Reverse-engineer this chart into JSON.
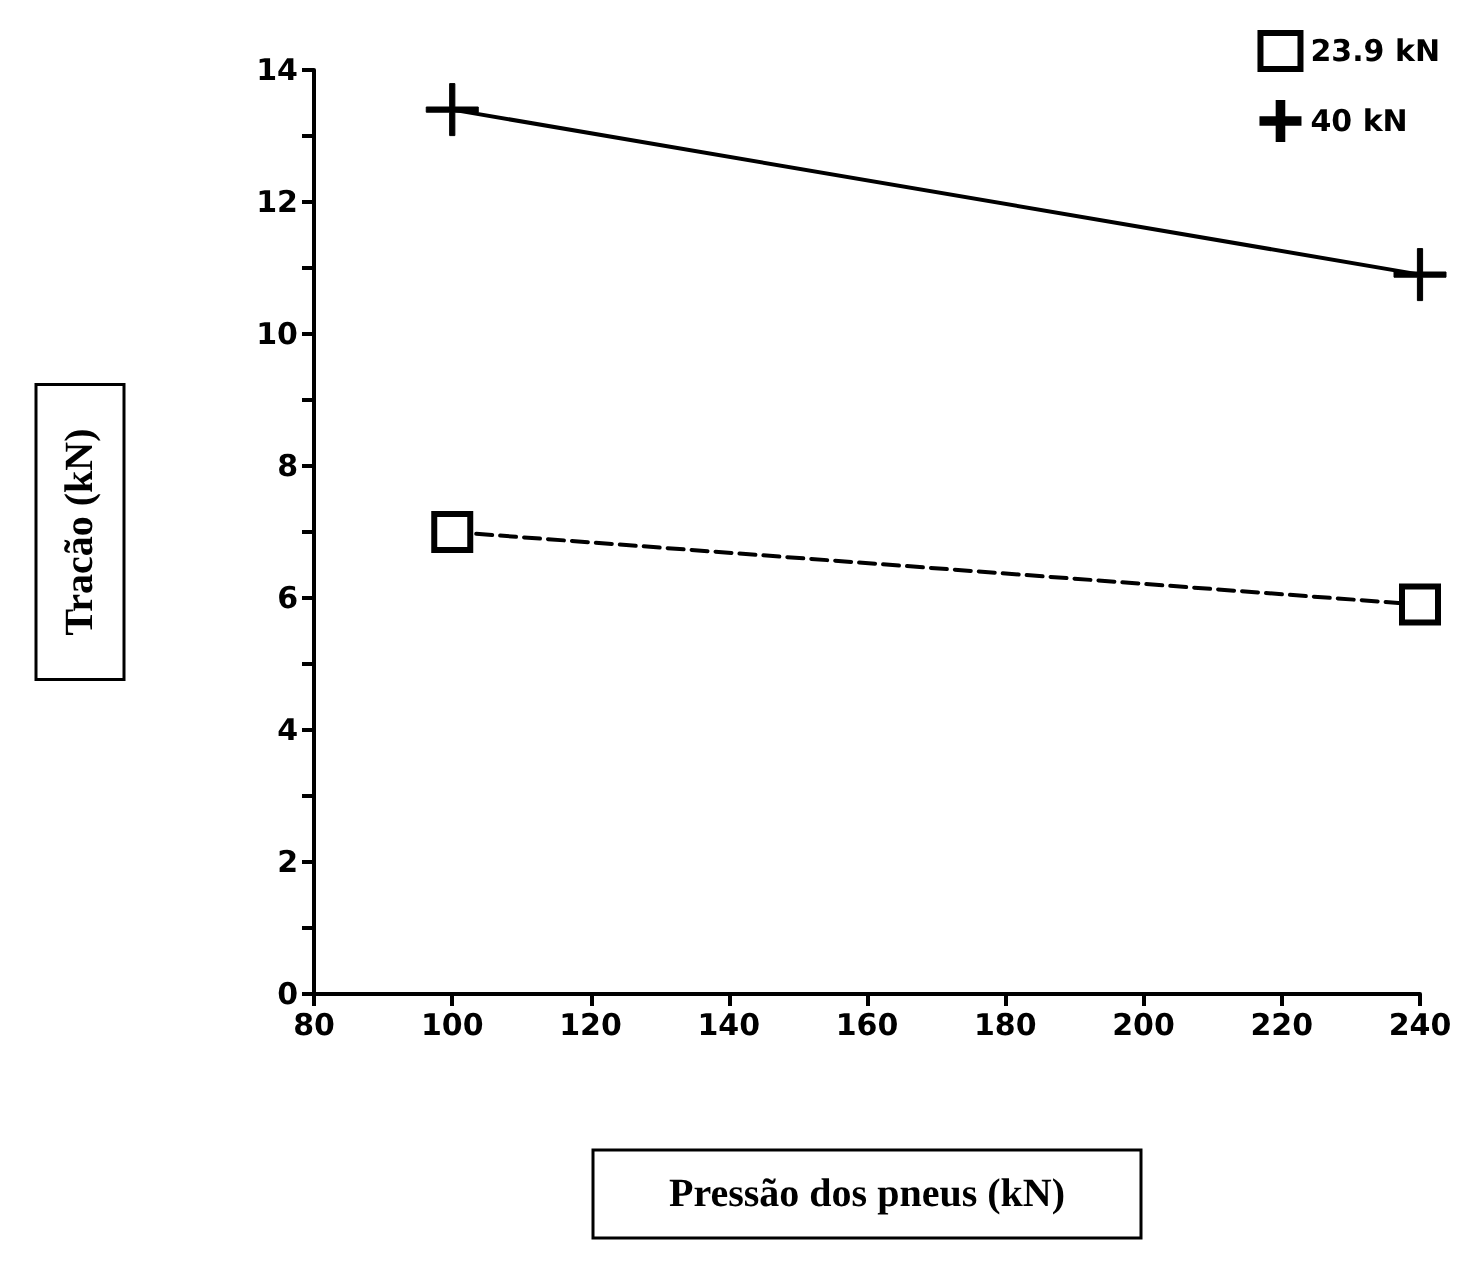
{
  "chart_data": {
    "type": "line",
    "xlabel": "Pressão dos pneus (kN)",
    "ylabel": "Tracão (kN)",
    "x": [
      100,
      240
    ],
    "series": [
      {
        "name": "23.9 kN",
        "color": "#000000",
        "values": [
          7.0,
          5.9
        ],
        "marker": "square",
        "line_style": "dashed"
      },
      {
        "name": "40 kN",
        "color": "#000000",
        "values": [
          13.4,
          10.9
        ],
        "marker": "cross",
        "line_style": "solid"
      }
    ],
    "xlim": [
      80,
      240
    ],
    "xticks": [
      80,
      100,
      120,
      140,
      160,
      180,
      200,
      220,
      240
    ],
    "ylim": [
      0,
      14
    ],
    "yticks": [
      0,
      2,
      4,
      6,
      8,
      10,
      12,
      14
    ],
    "grid": false,
    "legend": "top right"
  }
}
